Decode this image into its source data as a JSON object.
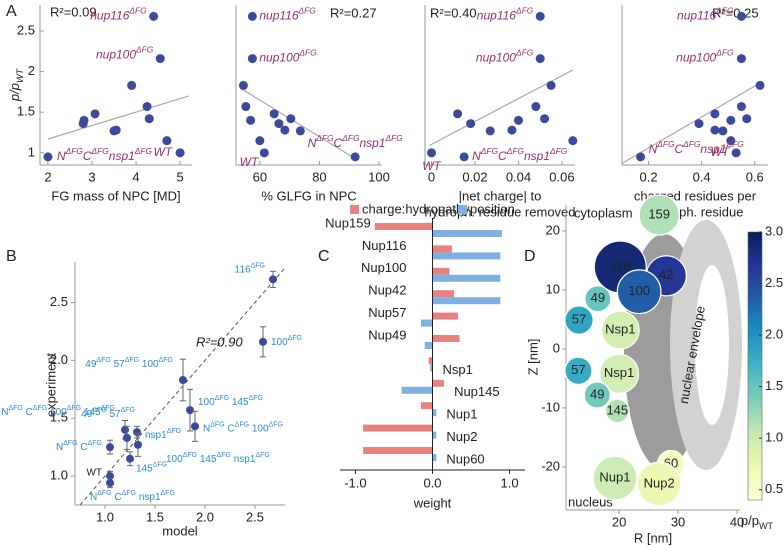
{
  "chart_data": [
    {
      "type": "scatter",
      "panel": "A",
      "ylabel": "p/pWT",
      "stat_label": "R²=0.09",
      "xlabel": [
        "FG mass of NPC [MD]"
      ],
      "x": [
        4.4,
        4.55,
        2.0,
        5.0,
        3.9,
        4.25,
        3.07,
        4.3,
        2.82,
        2.8,
        3.55,
        3.5,
        4.7
      ],
      "y": [
        2.68,
        2.16,
        0.95,
        1.0,
        1.83,
        1.57,
        1.48,
        1.42,
        1.4,
        1.36,
        1.28,
        1.27,
        1.15
      ],
      "annotations": [
        "nup116ΔFG",
        "nup100ΔFG",
        "NΔFGCΔFGnsp1ΔFG",
        "WT"
      ],
      "fit": {
        "x": [
          2.0,
          5.2
        ],
        "y": [
          1.17,
          1.7
        ]
      },
      "xlim": [
        1.82,
        5.27
      ],
      "ylim": [
        0.85,
        2.82
      ],
      "xticks": [
        2,
        3,
        4,
        5
      ],
      "yticks": [
        1,
        1.5,
        2,
        2.5
      ],
      "color": "#3b4a9b",
      "line_color": "#aaaaaa"
    },
    {
      "type": "scatter",
      "stat_label": "R²=0.27",
      "xlabel": [
        "% GLFG in NPC"
      ],
      "x": [
        57.5,
        57.5,
        92,
        61.5,
        54.5,
        55.3,
        64.8,
        70.4,
        56.9,
        66.4,
        68.4,
        73.6,
        60
      ],
      "y": [
        2.68,
        2.16,
        0.95,
        1.0,
        1.83,
        1.57,
        1.48,
        1.42,
        1.4,
        1.36,
        1.28,
        1.27,
        1.15
      ],
      "annotations": [
        "nup116ΔFG",
        "nup100ΔFG",
        "NΔFGCΔFGnsp1ΔFG",
        "WT"
      ],
      "fit": {
        "x": [
          53.3,
          91
        ],
        "y": [
          1.8,
          0.95
        ]
      },
      "xlim": [
        52,
        101
      ],
      "ylim": [
        0.85,
        2.82
      ],
      "xticks": [
        60,
        80,
        100
      ],
      "color": "#3b4a9b",
      "line_color": "#aaaaaa"
    },
    {
      "type": "scatter",
      "stat_label": "R²=0.40",
      "xlabel": [
        "|net charge| to",
        "hydroph. residue removed"
      ],
      "x": [
        0.05,
        0.05,
        0.015,
        0.0,
        0.055,
        0.048,
        0.012,
        0.052,
        0.04,
        0.018,
        0.037,
        0.027,
        0.065
      ],
      "y": [
        2.68,
        2.16,
        0.95,
        1.0,
        1.83,
        1.57,
        1.48,
        1.42,
        1.4,
        1.36,
        1.28,
        1.27,
        1.15
      ],
      "annotations": [
        "nup116ΔFG",
        "nup100ΔFG",
        "NΔFGCΔFGnsp1ΔFG",
        "WT"
      ],
      "fit": {
        "x": [
          -0.001,
          0.065
        ],
        "y": [
          1.09,
          2.02
        ]
      },
      "xlim": [
        -0.003,
        0.066
      ],
      "ylim": [
        0.85,
        2.82
      ],
      "xticks": [
        0,
        0.02,
        0.04,
        0.06
      ],
      "color": "#3b4a9b",
      "line_color": "#aaaaaa"
    },
    {
      "type": "scatter",
      "stat_label": "R²=0.25",
      "xlabel": [
        "charged residues per",
        "hydroph. residue"
      ],
      "x": [
        0.55,
        0.55,
        0.17,
        0.53,
        0.62,
        0.55,
        0.45,
        0.57,
        0.51,
        0.39,
        0.45,
        0.48,
        0.51
      ],
      "y": [
        2.68,
        2.16,
        0.95,
        1.0,
        1.83,
        1.57,
        1.48,
        1.42,
        1.4,
        1.36,
        1.28,
        1.27,
        1.15
      ],
      "annotations": [
        "nup116ΔFG",
        "nup100ΔFG",
        "NΔFGCΔFGnsp1ΔFG",
        "WT"
      ],
      "fit": {
        "x": [
          0.1,
          0.62
        ],
        "y": [
          0.87,
          1.86
        ]
      },
      "xlim": [
        0.1,
        0.65
      ],
      "ylim": [
        0.85,
        2.82
      ],
      "xticks": [
        0.2,
        0.4,
        0.6
      ],
      "color": "#3b4a9b",
      "line_color": "#aaaaaa"
    },
    {
      "type": "scatter",
      "panel": "B",
      "xlabel": [
        "model"
      ],
      "ylabel": "experiment",
      "stat_label": "R²=0.90",
      "x": [
        1.05,
        1.05,
        1.05,
        1.2,
        1.22,
        1.25,
        1.32,
        1.33,
        1.78,
        1.85,
        1.9,
        2.58,
        2.68
      ],
      "y": [
        1.0,
        0.94,
        1.25,
        1.4,
        1.33,
        1.15,
        1.38,
        1.27,
        1.83,
        1.57,
        1.43,
        2.16,
        2.7
      ],
      "errors": [
        0.04,
        0.04,
        0.06,
        0.08,
        0.1,
        0.06,
        0.05,
        0.1,
        0.18,
        0.18,
        0.13,
        0.13,
        0.07
      ],
      "annotations": [
        "WT",
        "NΔFG CΔFG nsp1ΔFG",
        "NΔFG CΔFG",
        "49ΔFG 57ΔFG",
        "NΔFG CΔFG 100ΔFG 145ΔFG",
        "145ΔFG",
        "nsp1ΔFG",
        "100ΔFG 145ΔFG nsp1ΔFG",
        "49ΔFG 57ΔFG 100ΔFG",
        "100ΔFG 145ΔFG",
        "NΔFG CΔFG 100ΔFG",
        "100ΔFG",
        "116ΔFG"
      ],
      "xlim": [
        0.7,
        2.8
      ],
      "ylim": [
        0.75,
        2.85
      ],
      "xticks": [
        {
          "value": 1,
          "label": "1.0"
        },
        {
          "value": 1.5,
          "label": "1.5"
        },
        {
          "value": 2,
          "label": "2.0"
        },
        {
          "value": 2.5,
          "label": "2.5"
        }
      ],
      "yticks": [
        {
          "value": 1,
          "label": "1.0"
        },
        {
          "value": 1.5,
          "label": "1.5"
        },
        {
          "value": 2,
          "label": "2.0"
        },
        {
          "value": 2.5,
          "label": "2.5"
        }
      ],
      "color": "#3b4a9b"
    },
    {
      "type": "bar",
      "panel": "C",
      "orientation": "horizontal",
      "xlabel": [
        "weight"
      ],
      "categories": [
        "Nup159",
        "Nup116",
        "Nup100",
        "Nup42",
        "Nup57",
        "Nup49",
        "Nsp1",
        "Nup145",
        "Nup1",
        "Nup2",
        "Nup60"
      ],
      "series": [
        {
          "name": "charge:hydropathy",
          "color": "#e8827e",
          "values": [
            -0.75,
            0.25,
            0.22,
            0.28,
            0.33,
            0.35,
            -0.05,
            0.15,
            -0.15,
            -0.9,
            -0.9
          ]
        },
        {
          "name": "position",
          "color": "#7fb0e0",
          "values": [
            0.9,
            0.88,
            0.88,
            0.88,
            -0.15,
            -0.1,
            -0.03,
            -0.4,
            0.05,
            0.05,
            0.05
          ]
        }
      ],
      "xlim": [
        -1.2,
        1.2
      ],
      "xticks": [
        {
          "value": -1,
          "label": "-1.0"
        },
        {
          "value": 0,
          "label": "0.0"
        },
        {
          "value": 1,
          "label": "1.0"
        }
      ]
    },
    {
      "type": "bubble",
      "panel": "D",
      "xlabel": [
        "R [nm]"
      ],
      "ylabel": "Z [nm]",
      "region_labels": [
        "cytoplasm",
        "nucleus",
        "nuclear envelope"
      ],
      "nodes": [
        {
          "label": "159",
          "r": 26.8,
          "z": 22.7,
          "size": 3.4,
          "value": 1.15
        },
        {
          "label": "116",
          "r": 20.2,
          "z": 13.9,
          "size": 4.4,
          "value": 2.85
        },
        {
          "label": "42",
          "r": 28.0,
          "z": 12.4,
          "size": 3.4,
          "value": 2.65
        },
        {
          "label": "100",
          "r": 23.4,
          "z": 9.7,
          "size": 3.7,
          "value": 2.35
        },
        {
          "label": "49",
          "r": 16.4,
          "z": 8.5,
          "size": 2.2,
          "value": 1.5
        },
        {
          "label": "57",
          "r": 13.2,
          "z": 4.9,
          "size": 2.4,
          "value": 1.85
        },
        {
          "label": "Nsp1",
          "r": 20.2,
          "z": 3.2,
          "size": 3.2,
          "value": 0.95
        },
        {
          "label": "57",
          "r": 13.1,
          "z": -3.7,
          "size": 2.3,
          "value": 1.8
        },
        {
          "label": "Nsp1",
          "r": 20.0,
          "z": -4.2,
          "size": 3.3,
          "value": 0.95
        },
        {
          "label": "49",
          "r": 16.3,
          "z": -7.8,
          "size": 2.2,
          "value": 1.45
        },
        {
          "label": "145",
          "r": 19.7,
          "z": -10.5,
          "size": 2.0,
          "value": 1.15
        },
        {
          "label": "60",
          "r": 28.8,
          "z": -19.5,
          "size": 2.3,
          "value": 0.6
        },
        {
          "label": "Nup1",
          "r": 19.3,
          "z": -21.9,
          "size": 3.7,
          "value": 1.0
        },
        {
          "label": "Nup2",
          "r": 26.8,
          "z": -22.9,
          "size": 3.7,
          "value": 0.72
        }
      ],
      "xlim": [
        11,
        40.5
      ],
      "ylim": [
        -27.3,
        24.4
      ],
      "xticks": [
        20,
        30,
        40
      ],
      "yticks": [
        -20,
        -10,
        0,
        10,
        20
      ],
      "colorbar": {
        "label": "p/pWT",
        "lim": [
          0.4,
          3.0
        ],
        "ticks": [
          {
            "value": 0.5,
            "label": "0.5"
          },
          {
            "value": 1,
            "label": "1.0"
          },
          {
            "value": 1.5,
            "label": "1.5"
          },
          {
            "value": 2,
            "label": "2.0"
          },
          {
            "value": 2.5,
            "label": "2.5"
          },
          {
            "value": 3,
            "label": "3.0"
          }
        ],
        "colors": [
          "#ffffd9",
          "#edf8b1",
          "#c7e9b4",
          "#7fcdbb",
          "#41b6c4",
          "#1d91c0",
          "#225ea8",
          "#253494",
          "#081d58"
        ]
      }
    }
  ]
}
